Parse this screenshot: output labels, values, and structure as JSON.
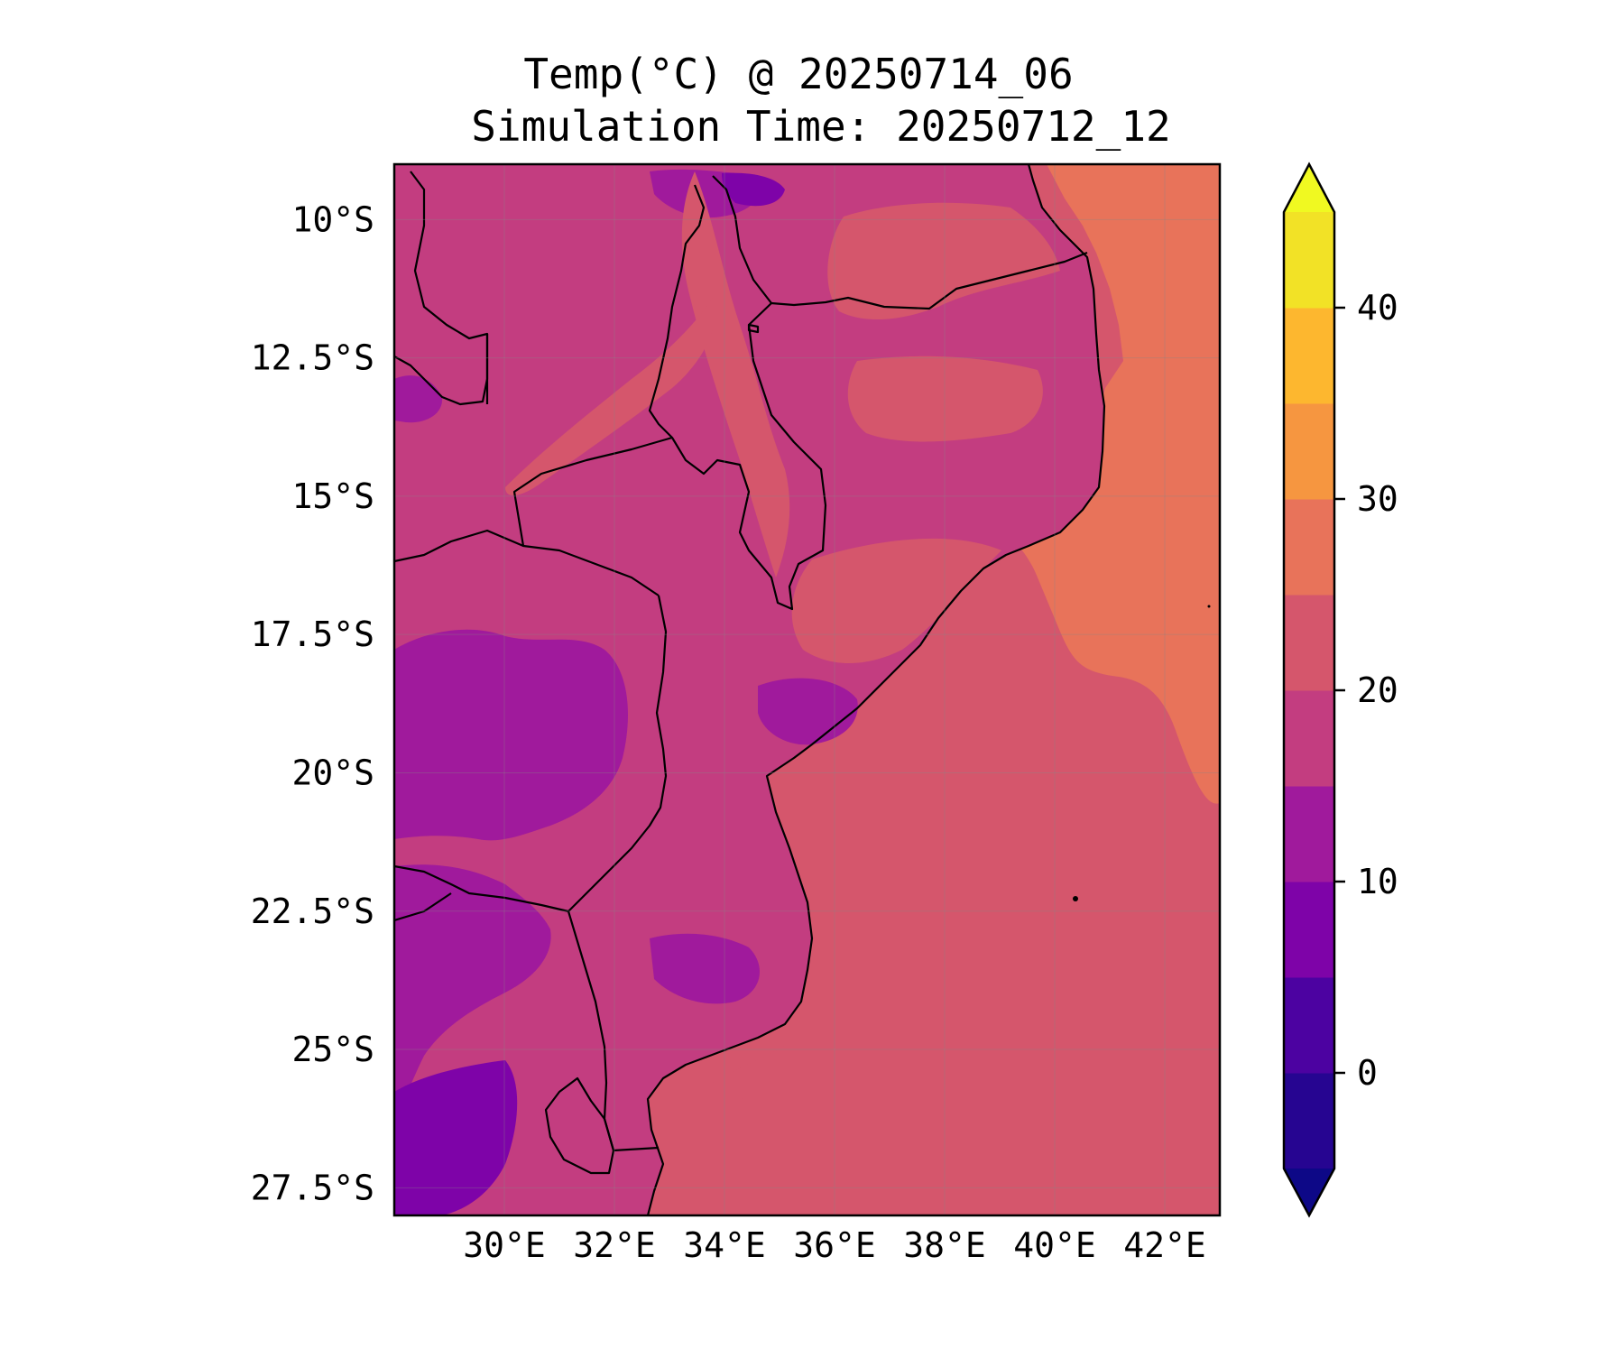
{
  "title": {
    "line1": "Temp(°C) @ 20250714_06",
    "line2": "Simulation Time: 20250712_12"
  },
  "map": {
    "projection": "PlateCarree",
    "lon_range": [
      28.0,
      43.0
    ],
    "lat_range": [
      -28.0,
      -9.0
    ],
    "gridlines": true,
    "features": [
      "coastline",
      "country borders",
      "lake outlines"
    ],
    "ocean_fill": "#d5566c",
    "offshore_warm_fill": "#e8735a",
    "lon_ticks": [
      {
        "value": 30,
        "label": "30°E"
      },
      {
        "value": 32,
        "label": "32°E"
      },
      {
        "value": 34,
        "label": "34°E"
      },
      {
        "value": 36,
        "label": "36°E"
      },
      {
        "value": 38,
        "label": "38°E"
      },
      {
        "value": 40,
        "label": "40°E"
      },
      {
        "value": 42,
        "label": "42°E"
      }
    ],
    "lat_ticks": [
      {
        "value": -10.0,
        "label": "10°S"
      },
      {
        "value": -12.5,
        "label": "12.5°S"
      },
      {
        "value": -15.0,
        "label": "15°S"
      },
      {
        "value": -17.5,
        "label": "17.5°S"
      },
      {
        "value": -20.0,
        "label": "20°S"
      },
      {
        "value": -22.5,
        "label": "22.5°S"
      },
      {
        "value": -25.0,
        "label": "25°S"
      },
      {
        "value": -27.5,
        "label": "27.5°S"
      }
    ]
  },
  "colorbar": {
    "colormap": "plasma",
    "extend": "both",
    "levels": [
      -5,
      0,
      5,
      10,
      15,
      20,
      25,
      30,
      35,
      40,
      45
    ],
    "below_color": "#0d0887",
    "above_color": "#f0f921",
    "bin_colors": [
      "#260591",
      "#4c02a1",
      "#7e03a8",
      "#a01a9c",
      "#c33d80",
      "#d5566c",
      "#e8735a",
      "#f69640",
      "#fdb72f",
      "#f2e226"
    ],
    "ticks": [
      {
        "value": 0,
        "label": "0"
      },
      {
        "value": 10,
        "label": "10"
      },
      {
        "value": 20,
        "label": "20"
      },
      {
        "value": 30,
        "label": "30"
      },
      {
        "value": 40,
        "label": "40"
      }
    ]
  }
}
